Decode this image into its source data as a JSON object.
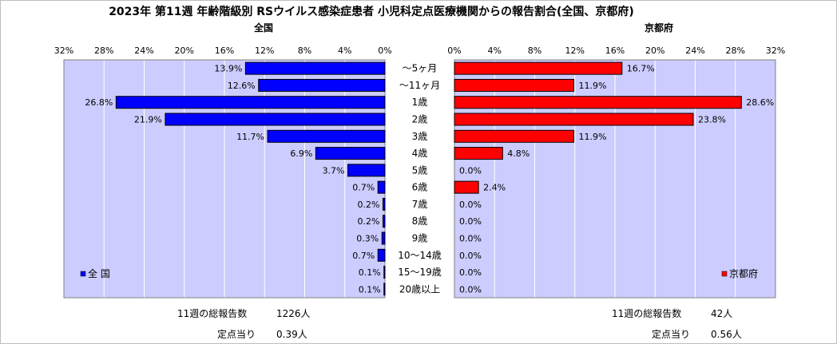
{
  "title": "2023年 第11週 年齢階級別 RSウイルス感染症患者 小児科定点医療機関からの報告割合(全国、京都府)",
  "chart_data": {
    "type": "bar",
    "orientation": "horizontal-butterfly",
    "categories": [
      "〜5ヶ月",
      "〜11ヶ月",
      "1歳",
      "2歳",
      "3歳",
      "4歳",
      "5歳",
      "6歳",
      "7歳",
      "8歳",
      "9歳",
      "10〜14歳",
      "15〜19歳",
      "20歳以上"
    ],
    "series": [
      {
        "name": "全 国",
        "panel_title": "全国",
        "color": "#0000ff",
        "values": [
          13.9,
          12.6,
          26.8,
          21.9,
          11.7,
          6.9,
          3.7,
          0.7,
          0.2,
          0.2,
          0.3,
          0.7,
          0.1,
          0.1
        ],
        "labels": [
          "13.9%",
          "12.6%",
          "26.8%",
          "21.9%",
          "11.7%",
          "6.9%",
          "3.7%",
          "0.7%",
          "0.2%",
          "0.2%",
          "0.3%",
          "0.7%",
          "0.1%",
          "0.1%"
        ]
      },
      {
        "name": "京都府",
        "panel_title": "京都府",
        "color": "#ff0000",
        "values": [
          16.7,
          11.9,
          28.6,
          23.8,
          11.9,
          4.8,
          0.0,
          2.4,
          0.0,
          0.0,
          0.0,
          0.0,
          0.0,
          0.0
        ],
        "labels": [
          "16.7%",
          "11.9%",
          "28.6%",
          "23.8%",
          "11.9%",
          "4.8%",
          "0.0%",
          "2.4%",
          "0.0%",
          "0.0%",
          "0.0%",
          "0.0%",
          "0.0%",
          "0.0%"
        ]
      }
    ],
    "xlim": [
      0,
      32
    ],
    "left_ticks": [
      "32%",
      "28%",
      "24%",
      "20%",
      "16%",
      "12%",
      "8%",
      "4%",
      "0%"
    ],
    "right_ticks": [
      "0%",
      "4%",
      "8%",
      "12%",
      "16%",
      "20%",
      "24%",
      "28%",
      "32%"
    ],
    "tick_values": [
      0,
      4,
      8,
      12,
      16,
      20,
      24,
      28,
      32
    ],
    "plot_background": "#ccccff",
    "grid": true,
    "legend_left": "bottom-left",
    "legend_right": "bottom-right"
  },
  "footer": {
    "national": {
      "total_label": "11週の総報告数",
      "total_value": "1226人",
      "per_site_label": "定点当り",
      "per_site_value": "0.39人"
    },
    "kyoto": {
      "total_label": "11週の総報告数",
      "total_value": "42人",
      "per_site_label": "定点当り",
      "per_site_value": "0.56人"
    }
  }
}
